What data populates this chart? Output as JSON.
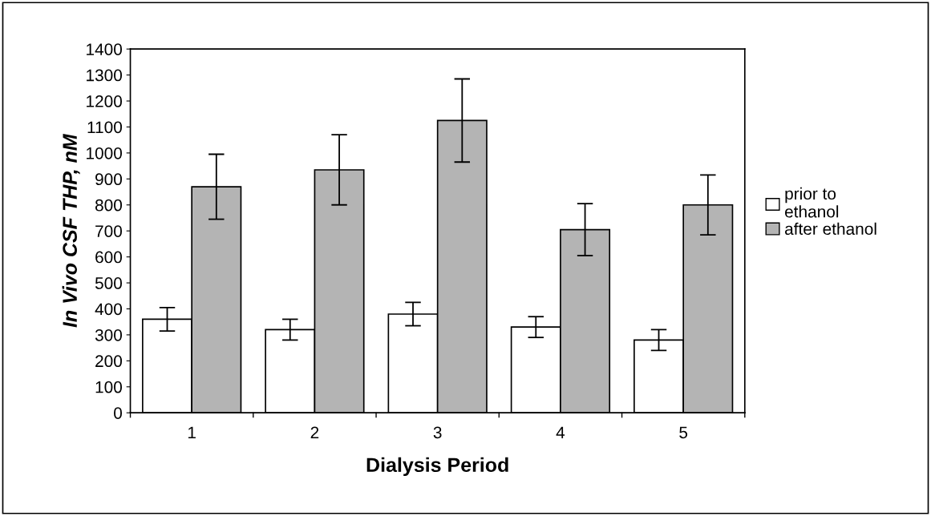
{
  "chart_data": {
    "type": "bar",
    "xlabel": "Dialysis Period",
    "ylabel": "In Vivo CSF THP, nM",
    "categories": [
      "1",
      "2",
      "3",
      "4",
      "5"
    ],
    "series": [
      {
        "name": "prior to\nethanol",
        "color": "#ffffff",
        "values": [
          360,
          320,
          380,
          330,
          280
        ],
        "errors": [
          45,
          40,
          45,
          40,
          40
        ]
      },
      {
        "name": "after ethanol",
        "color": "#b4b4b4",
        "values": [
          870,
          935,
          1125,
          705,
          800
        ],
        "errors": [
          125,
          135,
          160,
          100,
          115
        ]
      }
    ],
    "ylim": [
      0,
      1400
    ],
    "yticks": [
      0,
      100,
      200,
      300,
      400,
      500,
      600,
      700,
      800,
      900,
      1000,
      1100,
      1200,
      1300,
      1400
    ],
    "grid": false,
    "legend": "right"
  }
}
